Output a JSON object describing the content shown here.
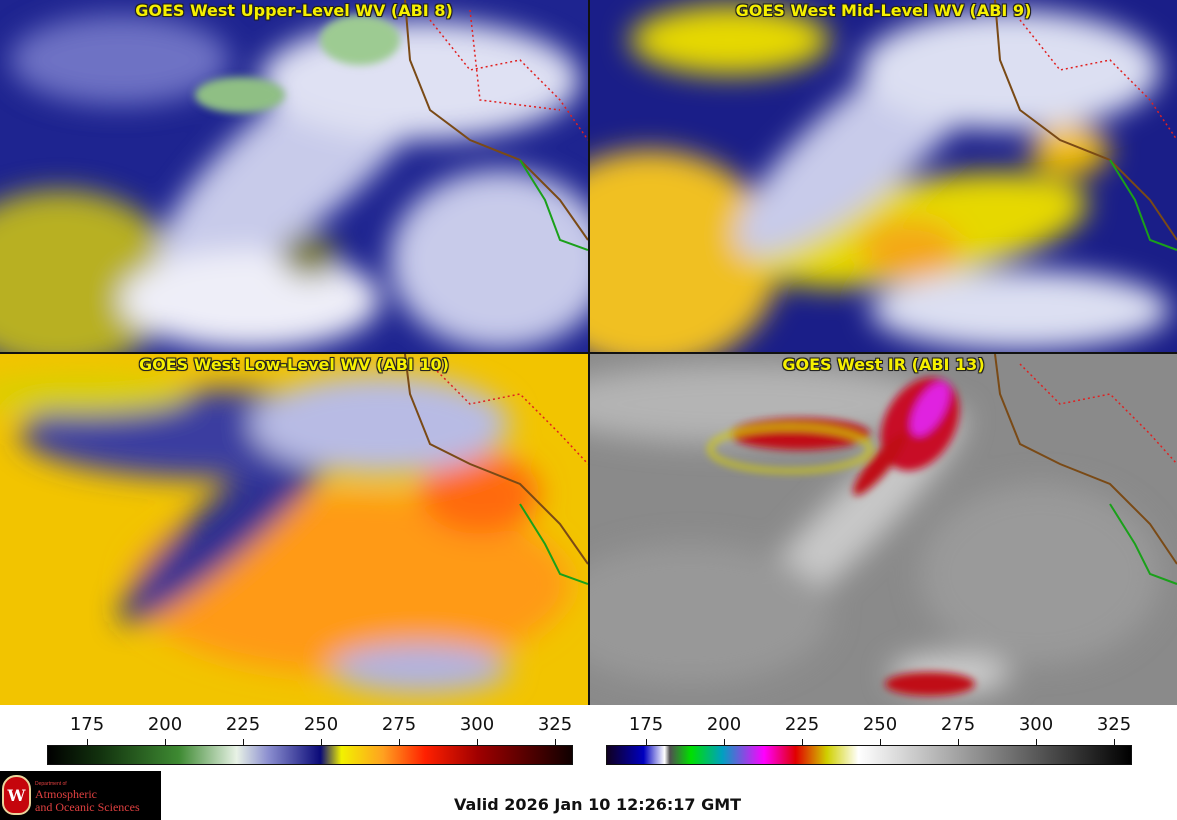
{
  "panels": {
    "upper": {
      "title": "GOES West Upper-Level WV (ABI 8)"
    },
    "mid": {
      "title": "GOES West Mid-Level WV (ABI 9)"
    },
    "low": {
      "title": "GOES West Low-Level WV (ABI 10)"
    },
    "ir": {
      "title": "GOES West IR (ABI 13)"
    }
  },
  "colorbar_left": {
    "ticks": [
      "175",
      "200",
      "225",
      "250",
      "275",
      "300",
      "325"
    ]
  },
  "colorbar_right": {
    "ticks": [
      "175",
      "200",
      "225",
      "250",
      "275",
      "300",
      "325"
    ]
  },
  "logo": {
    "seal": "W",
    "dept": "Department of",
    "line1": "Atmospheric",
    "line2": "and Oceanic Sciences"
  },
  "footer": {
    "valid": "Valid 2026 Jan 10 12:26:17 GMT"
  }
}
